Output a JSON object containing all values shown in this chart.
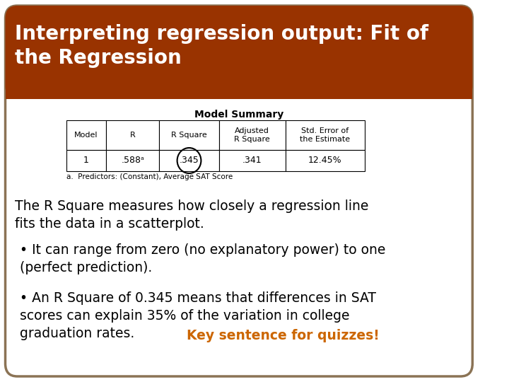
{
  "title_line1": "Interpreting regression output: Fit of",
  "title_line2": "the Regression",
  "title_bg_color": "#993300",
  "title_text_color": "#ffffff",
  "slide_bg_color": "#ffffff",
  "border_color": "#8B7355",
  "table_title": "Model Summary",
  "table_headers": [
    "Model",
    "R",
    "R Square",
    "Adjusted\nR Square",
    "Std. Error of\nthe Estimate"
  ],
  "table_row": [
    "1",
    ".588ᵃ",
    ".345",
    ".341",
    "12.45%"
  ],
  "table_footnote": "a.  Predictors: (Constant), Average SAT Score",
  "circle_on_col": 2,
  "body_text1": "The R Square measures how closely a regression line\nfits the data in a scatterplot.",
  "bullet1": "• It can range from zero (no explanatory power) to one\n(perfect prediction).",
  "bullet2_black": "• An R Square of 0.345 means that differences in SAT\nscores can explain 35% of the variation in college\ngraduation rates. ",
  "bullet2_orange": "Key sentence for quizzes!",
  "body_font_size": 13.5,
  "bullet_font_size": 13.5,
  "key_sentence_color": "#CC6600",
  "body_text_color": "#000000"
}
